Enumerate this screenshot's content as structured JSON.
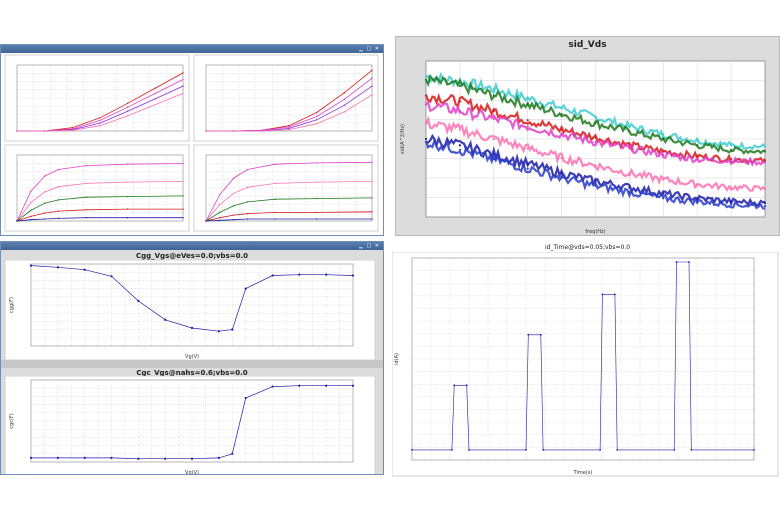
{
  "colors": {
    "navy": "#1c1ca8",
    "green": "#1e7a1e",
    "red": "#d81a1a",
    "magenta": "#e040c8",
    "pink": "#ff70b0",
    "cyan": "#3ecbd0",
    "purple": "#8a2be2",
    "black": "#202020",
    "blue": "#2a3cc8",
    "grid": "#c8c8c8",
    "frame": "#5a7fb0"
  },
  "icons": [
    "window-minimize-icon",
    "window-maximize-icon",
    "window-close-icon"
  ],
  "sid": {
    "title": "sid_Vds",
    "xlabel": "freq(Hz)",
    "ylabel": "sid(A^2/Hz)"
  },
  "cgg": {
    "title": "Cgg_Vgs@eVes=0.0;vbs=0.0",
    "xlabel": "Vg(V)",
    "ylabel": "cgg(F)"
  },
  "cgc": {
    "title": "Cgc_Vgs@nahs=0.6;vbs=0.0",
    "xlabel": "Vg(V)",
    "ylabel": "cgc(F)"
  },
  "id_time": {
    "title": "id_Time@vds=0.05;vbs=0.0",
    "xlabel": "Time(s)",
    "ylabel": "id(A)"
  },
  "chart_data": [
    {
      "type": "line",
      "id": "idvg-linear",
      "x": [
        0.0,
        0.2,
        0.4,
        0.6,
        0.8,
        1.0,
        1.2
      ],
      "series": [
        {
          "values": [
            0,
            0,
            0.05,
            0.2,
            0.42,
            0.65,
            0.88
          ]
        },
        {
          "values": [
            0,
            0,
            0.03,
            0.16,
            0.36,
            0.57,
            0.78
          ]
        },
        {
          "values": [
            0,
            0,
            0.02,
            0.12,
            0.3,
            0.49,
            0.68
          ]
        },
        {
          "values": [
            0,
            0,
            0.01,
            0.08,
            0.23,
            0.4,
            0.57
          ]
        }
      ]
    },
    {
      "type": "line",
      "id": "idvg-sat",
      "x": [
        0.0,
        0.2,
        0.4,
        0.6,
        0.8,
        1.0,
        1.2
      ],
      "series": [
        {
          "values": [
            0,
            0,
            0.01,
            0.08,
            0.28,
            0.58,
            0.92
          ]
        },
        {
          "values": [
            0,
            0,
            0.01,
            0.06,
            0.22,
            0.48,
            0.8
          ]
        },
        {
          "values": [
            0,
            0,
            0.0,
            0.04,
            0.17,
            0.39,
            0.68
          ]
        },
        {
          "values": [
            0,
            0,
            0.0,
            0.02,
            0.11,
            0.29,
            0.55
          ]
        }
      ]
    },
    {
      "type": "line",
      "id": "idvd-left",
      "x": [
        0.0,
        0.1,
        0.2,
        0.3,
        0.5,
        0.8,
        1.2
      ],
      "series": [
        {
          "values": [
            0,
            0.45,
            0.68,
            0.78,
            0.84,
            0.86,
            0.87
          ]
        },
        {
          "values": [
            0,
            0.28,
            0.44,
            0.52,
            0.57,
            0.59,
            0.6
          ]
        },
        {
          "values": [
            0,
            0.16,
            0.27,
            0.32,
            0.36,
            0.37,
            0.38
          ]
        },
        {
          "values": [
            0,
            0.07,
            0.12,
            0.15,
            0.17,
            0.18,
            0.18
          ]
        },
        {
          "values": [
            0,
            0.02,
            0.03,
            0.04,
            0.05,
            0.05,
            0.05
          ]
        }
      ]
    },
    {
      "type": "line",
      "id": "idvd-right",
      "x": [
        0.0,
        0.1,
        0.2,
        0.3,
        0.5,
        0.8,
        1.2
      ],
      "series": [
        {
          "values": [
            0,
            0.4,
            0.65,
            0.78,
            0.86,
            0.88,
            0.89
          ]
        },
        {
          "values": [
            0,
            0.25,
            0.42,
            0.51,
            0.57,
            0.59,
            0.6
          ]
        },
        {
          "values": [
            0,
            0.13,
            0.23,
            0.29,
            0.33,
            0.34,
            0.35
          ]
        },
        {
          "values": [
            0,
            0.05,
            0.09,
            0.11,
            0.13,
            0.13,
            0.14
          ]
        },
        {
          "values": [
            0,
            0.01,
            0.02,
            0.03,
            0.03,
            0.03,
            0.03
          ]
        }
      ]
    },
    {
      "type": "scatter",
      "id": "sid",
      "scale": "log-log",
      "x": [
        0,
        0.1,
        0.2,
        0.3,
        0.4,
        0.5,
        0.6,
        0.7,
        0.8,
        0.9,
        1.0
      ],
      "series": [
        {
          "values": [
            0.9,
            0.87,
            0.82,
            0.76,
            0.7,
            0.64,
            0.58,
            0.53,
            0.49,
            0.46,
            0.45
          ]
        },
        {
          "values": [
            0.88,
            0.84,
            0.78,
            0.72,
            0.66,
            0.6,
            0.55,
            0.5,
            0.46,
            0.43,
            0.42
          ]
        },
        {
          "values": [
            0.78,
            0.74,
            0.68,
            0.62,
            0.56,
            0.51,
            0.46,
            0.42,
            0.39,
            0.37,
            0.36
          ]
        },
        {
          "values": [
            0.72,
            0.68,
            0.63,
            0.58,
            0.53,
            0.48,
            0.44,
            0.4,
            0.37,
            0.36,
            0.35
          ]
        },
        {
          "values": [
            0.6,
            0.56,
            0.5,
            0.44,
            0.38,
            0.33,
            0.28,
            0.24,
            0.21,
            0.19,
            0.18
          ]
        },
        {
          "values": [
            0.5,
            0.46,
            0.4,
            0.34,
            0.28,
            0.23,
            0.19,
            0.15,
            0.12,
            0.1,
            0.09
          ]
        },
        {
          "values": [
            0.48,
            0.43,
            0.37,
            0.31,
            0.25,
            0.2,
            0.16,
            0.12,
            0.1,
            0.08,
            0.07
          ]
        }
      ]
    },
    {
      "type": "line",
      "id": "cgg",
      "x": [
        -1.2,
        -1.0,
        -0.8,
        -0.6,
        -0.4,
        -0.2,
        0.0,
        0.2,
        0.3,
        0.4,
        0.6,
        0.8,
        1.0,
        1.2
      ],
      "series": [
        {
          "values": [
            0.98,
            0.96,
            0.93,
            0.85,
            0.55,
            0.32,
            0.22,
            0.18,
            0.2,
            0.7,
            0.86,
            0.87,
            0.87,
            0.86
          ]
        }
      ]
    },
    {
      "type": "line",
      "id": "cgc",
      "x": [
        -1.2,
        -1.0,
        -0.8,
        -0.6,
        -0.4,
        -0.2,
        0.0,
        0.2,
        0.3,
        0.4,
        0.6,
        0.8,
        1.0,
        1.2
      ],
      "series": [
        {
          "values": [
            0.05,
            0.05,
            0.05,
            0.05,
            0.04,
            0.04,
            0.04,
            0.05,
            0.1,
            0.78,
            0.92,
            0.93,
            0.93,
            0.93
          ]
        }
      ]
    },
    {
      "type": "line",
      "id": "id-time",
      "x": [
        0,
        0.35,
        0.37,
        0.48,
        0.5,
        1.0,
        1.02,
        1.13,
        1.15,
        1.65,
        1.67,
        1.78,
        1.8,
        2.3,
        2.32,
        2.43,
        2.45,
        3.0
      ],
      "series": [
        {
          "values": [
            0.05,
            0.05,
            0.37,
            0.37,
            0.05,
            0.05,
            0.62,
            0.62,
            0.05,
            0.05,
            0.82,
            0.82,
            0.05,
            0.05,
            0.98,
            0.98,
            0.05,
            0.05
          ]
        }
      ]
    }
  ]
}
